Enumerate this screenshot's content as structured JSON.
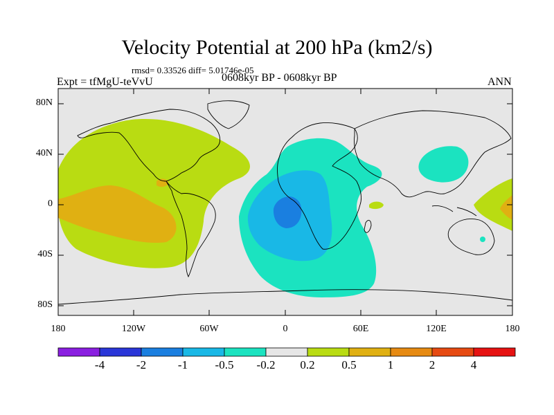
{
  "title": "Velocity Potential at 200 hPa (km2/s)",
  "rmsd_text": "rmsd= 0.33526 diff= 5.01746e-05",
  "experiment": "Expt = tfMgU-teVvU",
  "period": "0608kyr BP - 0608kyr BP",
  "season": "ANN",
  "y_axis_labels": [
    "80N",
    "40N",
    "0",
    "40S",
    "80S"
  ],
  "x_axis_labels": [
    "180",
    "120W",
    "60W",
    "0",
    "60E",
    "120E",
    "180"
  ],
  "colorbar": {
    "colors": [
      "#8a1fe0",
      "#2a36d8",
      "#1a7fe0",
      "#19b8e6",
      "#1be3c0",
      "#e6e6e6",
      "#b9dc12",
      "#e0b012",
      "#e68a12",
      "#e64a12",
      "#e61212"
    ],
    "labels": [
      "-4",
      "-2",
      "-1",
      "-0.5",
      "-0.2",
      "0.2",
      "0.5",
      "1",
      "2",
      "4"
    ]
  },
  "colors": {
    "land_background": "#e6e6e6",
    "positive_low": "#b9dc12",
    "positive_mid": "#e0b012",
    "negative_low": "#1be3c0",
    "negative_mid": "#19b8e6",
    "negative_high": "#1a7fe0"
  }
}
